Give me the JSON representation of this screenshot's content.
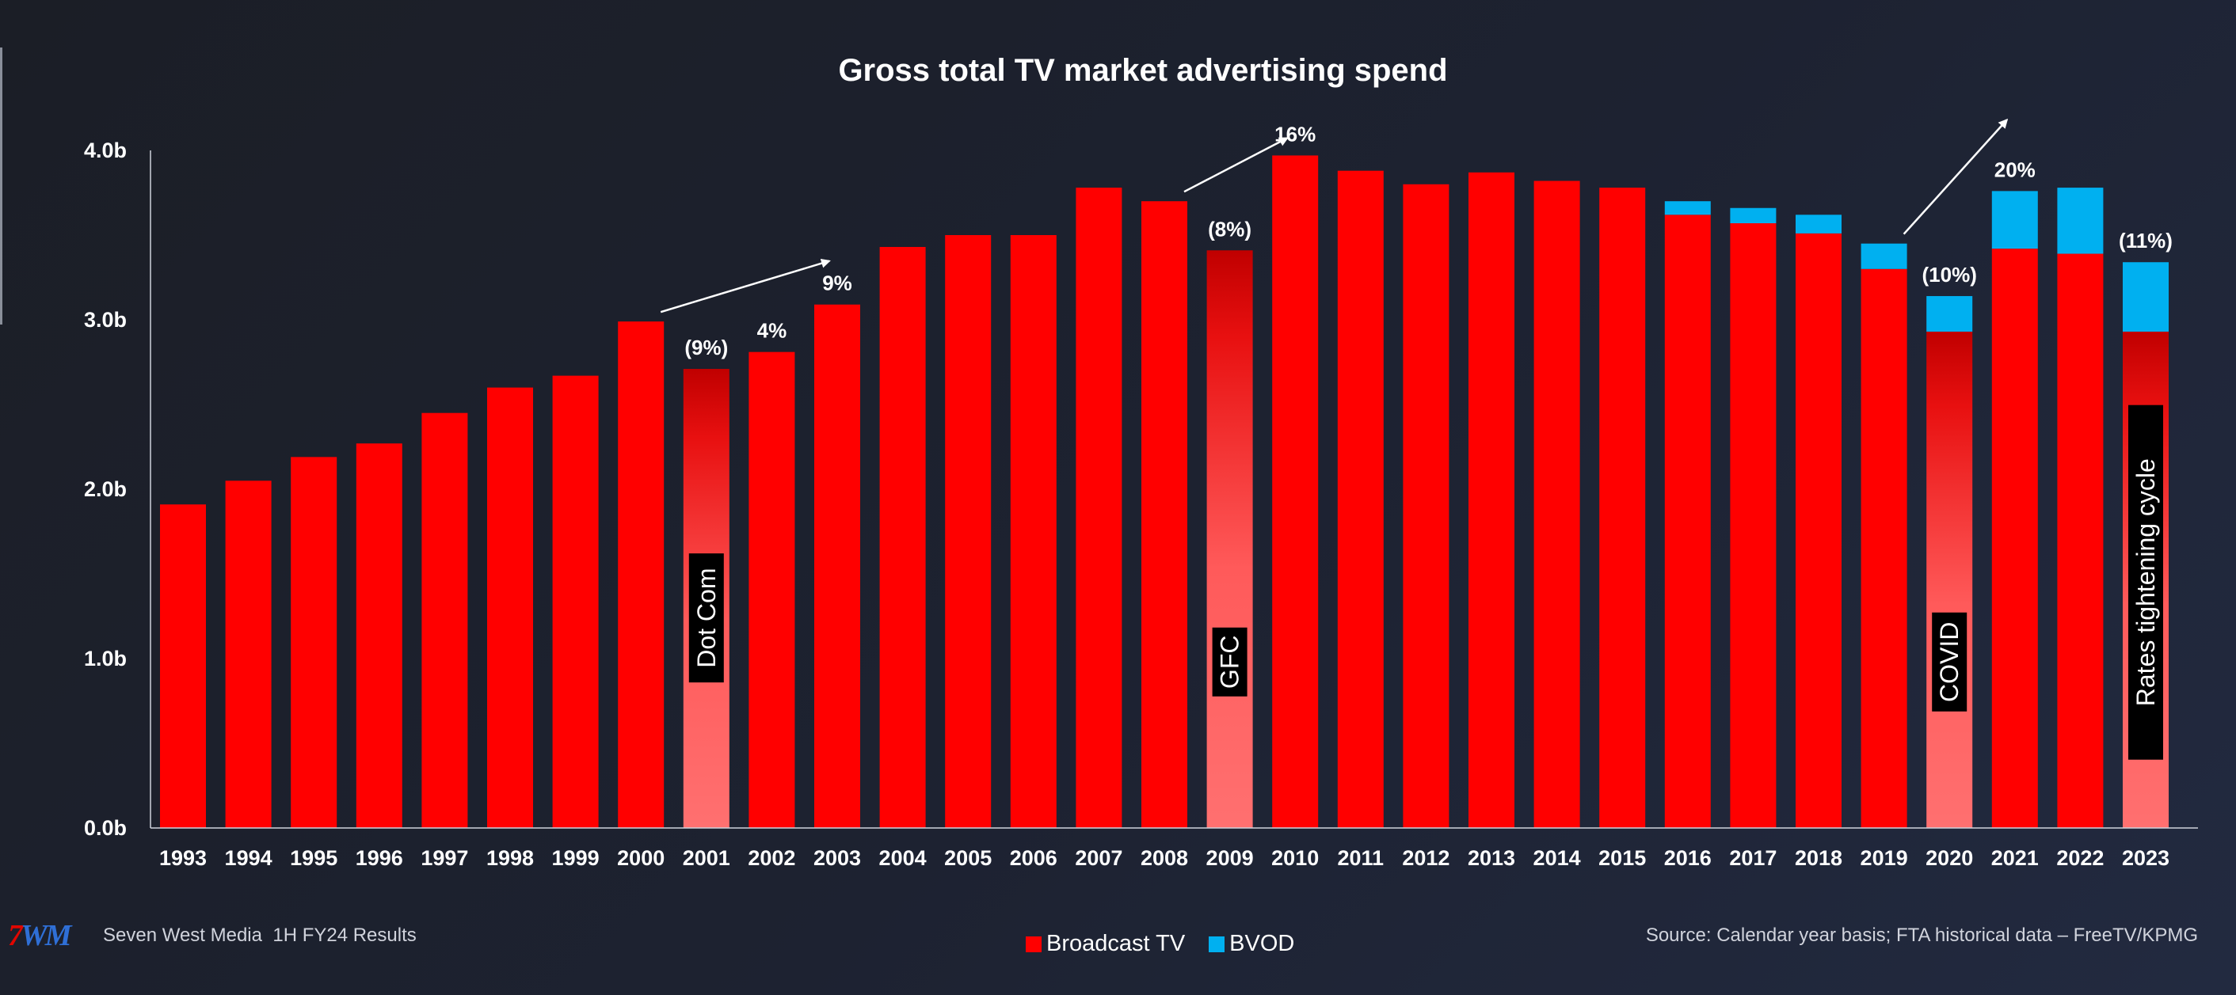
{
  "chart_data": {
    "type": "bar",
    "stacked": true,
    "title": "Gross total TV market advertising spend",
    "xlabel": "",
    "ylabel": "",
    "ylim": [
      0,
      4.0
    ],
    "yticks": [
      {
        "value": 0,
        "label": "0.0b"
      },
      {
        "value": 1.0,
        "label": "1.0b"
      },
      {
        "value": 2.0,
        "label": "2.0b"
      },
      {
        "value": 3.0,
        "label": "3.0b"
      },
      {
        "value": 4.0,
        "label": "4.0b"
      }
    ],
    "categories": [
      "1993",
      "1994",
      "1995",
      "1996",
      "1997",
      "1998",
      "1999",
      "2000",
      "2001",
      "2002",
      "2003",
      "2004",
      "2005",
      "2006",
      "2007",
      "2008",
      "2009",
      "2010",
      "2011",
      "2012",
      "2013",
      "2014",
      "2015",
      "2016",
      "2017",
      "2018",
      "2019",
      "2020",
      "2021",
      "2022",
      "2023"
    ],
    "series": [
      {
        "name": "Broadcast TV",
        "color": "#ff0000",
        "values": [
          1.91,
          2.05,
          2.19,
          2.27,
          2.45,
          2.6,
          2.67,
          2.99,
          2.71,
          2.81,
          3.09,
          3.43,
          3.5,
          3.5,
          3.78,
          3.7,
          3.41,
          3.97,
          3.88,
          3.8,
          3.87,
          3.82,
          3.78,
          3.62,
          3.57,
          3.51,
          3.3,
          2.93,
          3.42,
          3.39,
          2.93
        ]
      },
      {
        "name": "BVOD",
        "color": "#00b0f0",
        "values": [
          0,
          0,
          0,
          0,
          0,
          0,
          0,
          0,
          0,
          0,
          0,
          0,
          0,
          0,
          0,
          0,
          0,
          0,
          0,
          0,
          0,
          0,
          0,
          0.08,
          0.09,
          0.11,
          0.15,
          0.21,
          0.34,
          0.39,
          0.41
        ]
      }
    ],
    "gradient_categories": [
      "2001",
      "2009",
      "2020",
      "2023"
    ],
    "growth_labels": [
      {
        "category": "2001",
        "label": "(9%)"
      },
      {
        "category": "2002",
        "label": "4%"
      },
      {
        "category": "2003",
        "label": "9%"
      },
      {
        "category": "2009",
        "label": "(8%)"
      },
      {
        "category": "2010",
        "label": "16%"
      },
      {
        "category": "2020",
        "label": "(10%)"
      },
      {
        "category": "2021",
        "label": "20%"
      },
      {
        "category": "2023",
        "label": "(11%)"
      }
    ],
    "events": [
      {
        "category": "2001",
        "label": "Dot Com"
      },
      {
        "category": "2009",
        "label": "GFC"
      },
      {
        "category": "2020",
        "label": "COVID"
      },
      {
        "category": "2023",
        "label": "Rates tightening cycle"
      }
    ],
    "grid": false,
    "legend_position": "bottom-center"
  },
  "footer": {
    "logo_seven": "7",
    "logo_wm": "WM",
    "company": "Seven West Media",
    "report": "1H FY24 Results",
    "legend_broadcast": "Broadcast TV",
    "legend_bvod": "BVOD",
    "source": "Source: Calendar year basis; FTA historical data – FreeTV/KPMG"
  },
  "colors": {
    "broadcast": "#ff0000",
    "bvod": "#00b0f0",
    "gradient_light": "#ff7070",
    "gradient_dark": "#c00000",
    "event_box": "#000000"
  }
}
